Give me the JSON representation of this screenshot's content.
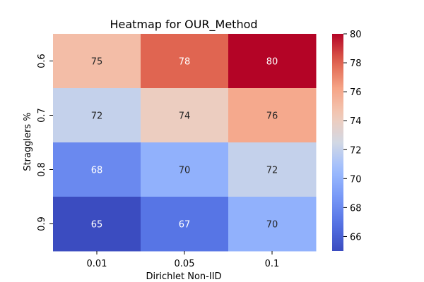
{
  "chart_data": {
    "type": "heatmap",
    "title": "Heatmap for OUR_Method",
    "xlabel": "Dirichlet Non-IID",
    "ylabel": "Stragglers %",
    "x_categories": [
      "0.01",
      "0.05",
      "0.1"
    ],
    "y_categories": [
      "0.6",
      "0.7",
      "0.8",
      "0.9"
    ],
    "values": [
      [
        75,
        78,
        80
      ],
      [
        72,
        74,
        76
      ],
      [
        68,
        70,
        72
      ],
      [
        65,
        67,
        70
      ]
    ],
    "colormap": "coolwarm",
    "colorbar": {
      "range": [
        65,
        80
      ],
      "ticks": [
        "66",
        "68",
        "70",
        "72",
        "74",
        "76",
        "78",
        "80"
      ]
    },
    "colors": {
      "low": "#3b4cc0",
      "mid": "#dddcdc",
      "high": "#b40426"
    }
  }
}
